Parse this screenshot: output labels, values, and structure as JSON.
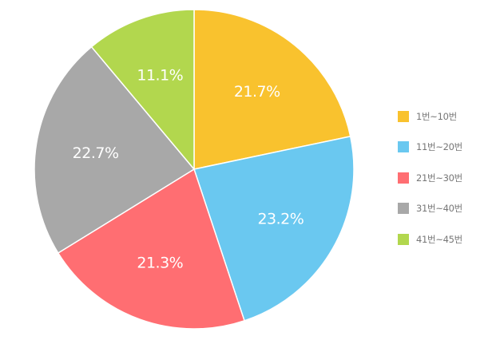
{
  "chart_data": {
    "type": "pie",
    "start_angle_deg": 0,
    "direction": "clockwise",
    "legend_position": "right",
    "categories": [
      "1번~10번",
      "11번~20번",
      "21번~30번",
      "31번~40번",
      "41번~45번"
    ],
    "values": [
      21.7,
      23.2,
      21.3,
      22.7,
      11.1
    ],
    "value_labels": [
      "21.7%",
      "23.2%",
      "21.3%",
      "22.7%",
      "11.1%"
    ],
    "colors": [
      "#F9C22E",
      "#6AC8F0",
      "#FF6E72",
      "#A8A8A8",
      "#B2D74E"
    ]
  }
}
